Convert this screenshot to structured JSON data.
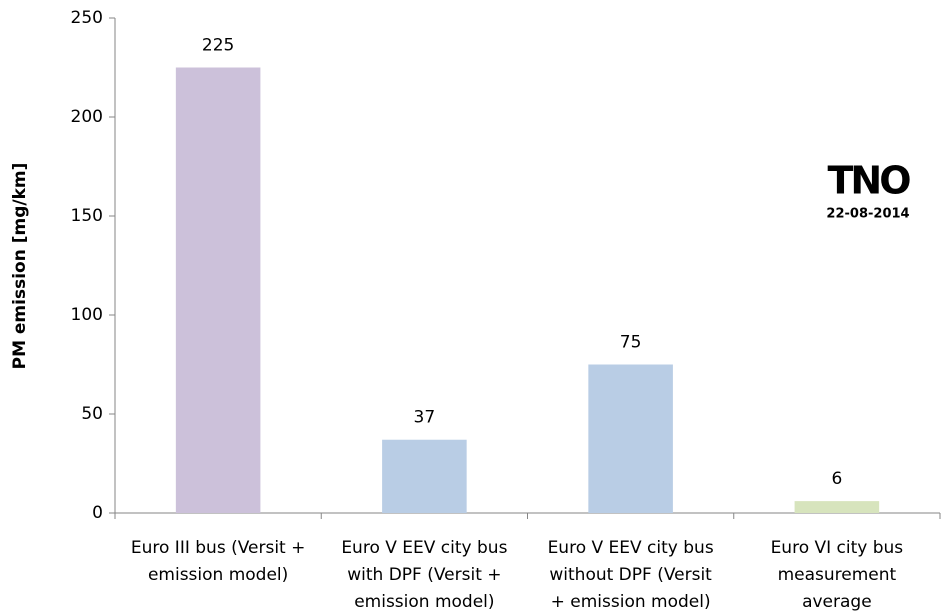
{
  "chart_data": {
    "type": "bar",
    "y_label": "PM emission [mg/km]",
    "categories": [
      [
        "Euro III bus (Versit +",
        "emission model)"
      ],
      [
        "Euro V EEV city bus",
        "with DPF (Versit +",
        "emission model)"
      ],
      [
        "Euro V EEV city bus",
        "without DPF (Versit",
        "+ emission model)"
      ],
      [
        "Euro VI city bus",
        "measurement",
        "average"
      ]
    ],
    "values": [
      225,
      37,
      75,
      6
    ],
    "colors": [
      "#ccc1da",
      "#b9cde5",
      "#b9cde5",
      "#d7e4bd"
    ],
    "ylim": [
      0,
      250
    ],
    "yticks": [
      0,
      50,
      100,
      150,
      200,
      250
    ],
    "grid": false,
    "annotations": [
      "TNO",
      "22-08-2014"
    ]
  }
}
